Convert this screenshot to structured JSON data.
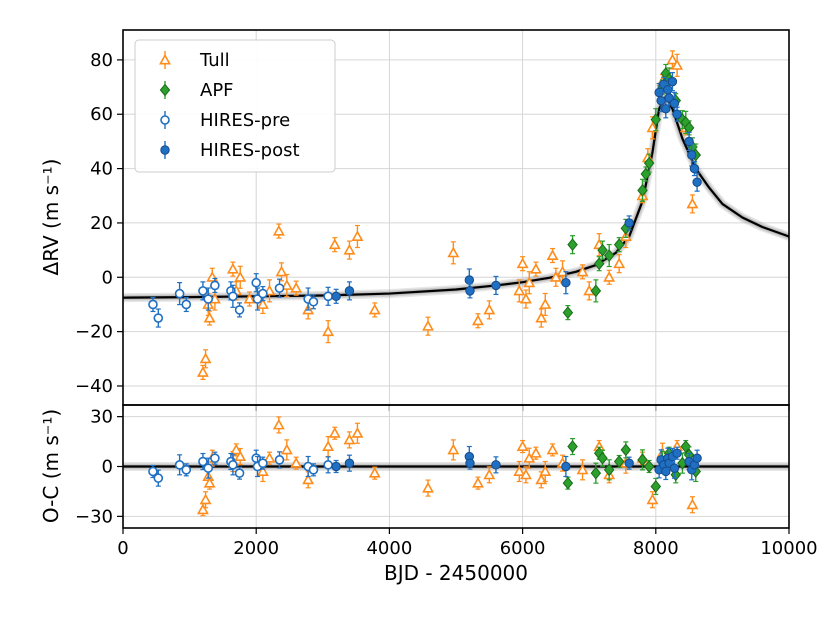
{
  "chart_data": [
    {
      "type": "scatter",
      "panel": "top",
      "title": "",
      "xlabel": "BJD - 2450000",
      "ylabel": "ΔRV (m s⁻¹)",
      "xlim": [
        0,
        10000
      ],
      "ylim": [
        -47,
        91
      ],
      "xticks": [
        0,
        2000,
        4000,
        6000,
        8000,
        10000
      ],
      "yticks": [
        -40,
        -20,
        0,
        20,
        40,
        60,
        80
      ],
      "grid": true,
      "legend": {
        "location": "top-left",
        "entries": [
          {
            "name": "Tull",
            "marker": "triangle-open",
            "color": "#ff8c1a"
          },
          {
            "name": "APF",
            "marker": "diamond",
            "color": "#2ca02c"
          },
          {
            "name": "HIRES-pre",
            "marker": "circle-open",
            "color": "#1f6fc2"
          },
          {
            "name": "HIRES-post",
            "marker": "circle",
            "color": "#1f6fc2"
          }
        ]
      },
      "model": {
        "name": "Keplerian fit",
        "color": "#000000",
        "x": [
          0,
          1000,
          2000,
          3000,
          4000,
          5000,
          5600,
          6000,
          6400,
          6800,
          7100,
          7400,
          7600,
          7800,
          7950,
          8050,
          8150,
          8250,
          8400,
          8600,
          8800,
          9000,
          9300,
          9600,
          10000
        ],
        "y": [
          -7.5,
          -7.3,
          -7,
          -6.7,
          -6,
          -4.5,
          -3,
          -1.8,
          -0.2,
          2,
          4.5,
          9,
          15,
          28,
          46,
          62,
          66.5,
          62,
          51,
          40,
          33,
          27,
          22,
          18.5,
          15
        ]
      },
      "series": [
        {
          "name": "Tull",
          "marker": "triangle-open",
          "color": "#ff8c1a",
          "x": [
            1200,
            1240,
            1280,
            1300,
            1340,
            1380,
            1650,
            1700,
            1760,
            1900,
            2100,
            2200,
            2340,
            2380,
            2460,
            2600,
            2780,
            3080,
            3180,
            3400,
            3520,
            3780,
            4580,
            4960,
            5330,
            5500,
            5950,
            6000,
            6050,
            6100,
            6200,
            6280,
            6340,
            6450,
            6500,
            6600,
            6900,
            7000,
            7150,
            7300,
            7450,
            7550,
            7800,
            7880,
            7950,
            8100,
            8250,
            8320,
            8450,
            8550
          ],
          "y": [
            -35,
            -30,
            -10,
            -15,
            0,
            -8,
            3,
            -5,
            0,
            -8,
            -10,
            -5,
            17,
            2,
            -3,
            -4,
            -12,
            -20,
            12,
            10,
            15,
            -12,
            -18,
            9,
            -16,
            -12,
            -5,
            5,
            -8,
            -2,
            3,
            -15,
            -10,
            8,
            0,
            2,
            2,
            -5,
            12,
            0,
            5,
            15,
            30,
            44,
            55,
            72,
            80,
            78,
            55,
            27
          ]
        },
        {
          "name": "APF",
          "marker": "diamond",
          "color": "#2ca02c",
          "x": [
            6680,
            6750,
            7100,
            7150,
            7200,
            7300,
            7450,
            7550,
            7800,
            7850,
            7900,
            8000,
            8100,
            8150,
            8200,
            8300,
            8400,
            8450,
            8500,
            8550,
            8600
          ],
          "y": [
            -13,
            12,
            -5,
            5,
            10,
            8,
            12,
            18,
            32,
            38,
            42,
            58,
            70,
            75,
            73,
            65,
            58,
            57,
            55,
            48,
            45
          ]
        },
        {
          "name": "HIRES-pre",
          "marker": "circle-open",
          "color": "#1f6fc2",
          "x": [
            450,
            530,
            850,
            950,
            1200,
            1280,
            1380,
            1620,
            1650,
            1750,
            2000,
            2020,
            2100,
            2350,
            2780,
            2860,
            3080
          ],
          "y": [
            -10,
            -15,
            -6,
            -10,
            -5,
            -8,
            -3,
            -5,
            -7,
            -12,
            -2,
            -8,
            -6,
            -4,
            -8,
            -9,
            -7
          ]
        },
        {
          "name": "HIRES-post",
          "marker": "circle",
          "color": "#1f6fc2",
          "x": [
            3200,
            3400,
            5200,
            5210,
            5600,
            6650,
            7600,
            8050,
            8080,
            8120,
            8150,
            8180,
            8200,
            8250,
            8280,
            8320,
            8500,
            8540,
            8580,
            8620
          ],
          "y": [
            -7,
            -5,
            -1,
            -5,
            -3,
            -2,
            20,
            68,
            65,
            71,
            62,
            69,
            66,
            72,
            64,
            60,
            50,
            45,
            40,
            35
          ]
        }
      ]
    },
    {
      "type": "scatter",
      "panel": "bottom",
      "title": "",
      "xlabel": "BJD - 2450000",
      "ylabel": "O-C (m s⁻¹)",
      "xlim": [
        0,
        10000
      ],
      "ylim": [
        -37,
        37
      ],
      "xticks": [
        0,
        2000,
        4000,
        6000,
        8000,
        10000
      ],
      "xtick_labels": [
        "0",
        "2000",
        "4000",
        "6000",
        "8000",
        "10000"
      ],
      "yticks": [
        -30,
        0,
        30
      ],
      "grid": true,
      "model": {
        "name": "zero line",
        "color": "#000000",
        "x": [
          0,
          10000
        ],
        "y": [
          0,
          0
        ]
      },
      "series": [
        {
          "name": "Tull",
          "marker": "triangle-open",
          "color": "#ff8c1a",
          "x": [
            1200,
            1240,
            1280,
            1300,
            1340,
            1650,
            1700,
            1760,
            2100,
            2200,
            2340,
            2460,
            2600,
            2780,
            3080,
            3180,
            3400,
            3520,
            3780,
            4580,
            4960,
            5330,
            5500,
            5950,
            6000,
            6050,
            6100,
            6200,
            6280,
            6340,
            6450,
            6600,
            6900,
            7150,
            7300,
            7550,
            7800,
            7950,
            8100,
            8320,
            8550
          ],
          "y": [
            -26,
            -20,
            -6,
            -10,
            5,
            3,
            10,
            6,
            -3,
            5,
            25,
            10,
            2,
            -8,
            12,
            20,
            16,
            20,
            -4,
            -13,
            10,
            -10,
            -5,
            -3,
            12,
            -5,
            5,
            8,
            -8,
            -3,
            10,
            2,
            -2,
            12,
            -5,
            2,
            5,
            -20,
            8,
            12,
            -23
          ]
        },
        {
          "name": "APF",
          "marker": "diamond",
          "color": "#2ca02c",
          "x": [
            6680,
            6750,
            7100,
            7150,
            7200,
            7300,
            7450,
            7550,
            7800,
            7900,
            8000,
            8100,
            8200,
            8300,
            8400,
            8450,
            8500,
            8600
          ],
          "y": [
            -10,
            12,
            -4,
            8,
            5,
            -2,
            3,
            10,
            4,
            0,
            -12,
            3,
            8,
            -5,
            2,
            12,
            7,
            -3
          ]
        },
        {
          "name": "HIRES-pre",
          "marker": "circle-open",
          "color": "#1f6fc2",
          "x": [
            450,
            530,
            850,
            950,
            1200,
            1280,
            1380,
            1620,
            1650,
            1750,
            2000,
            2020,
            2100,
            2350,
            2780,
            2860,
            3080
          ],
          "y": [
            -3,
            -7,
            1,
            -2,
            3,
            -1,
            5,
            3,
            1,
            -4,
            5,
            0,
            2,
            4,
            0,
            -2,
            1
          ]
        },
        {
          "name": "HIRES-post",
          "marker": "circle",
          "color": "#1f6fc2",
          "x": [
            3200,
            3400,
            5200,
            5210,
            5600,
            6650,
            7600,
            8050,
            8080,
            8120,
            8150,
            8180,
            8200,
            8250,
            8280,
            8320,
            8500,
            8540,
            8580,
            8620
          ],
          "y": [
            0,
            2,
            6,
            2,
            1,
            0,
            2,
            -2,
            4,
            1,
            -3,
            5,
            2,
            6,
            -1,
            8,
            3,
            -2,
            1,
            5
          ]
        }
      ]
    }
  ]
}
